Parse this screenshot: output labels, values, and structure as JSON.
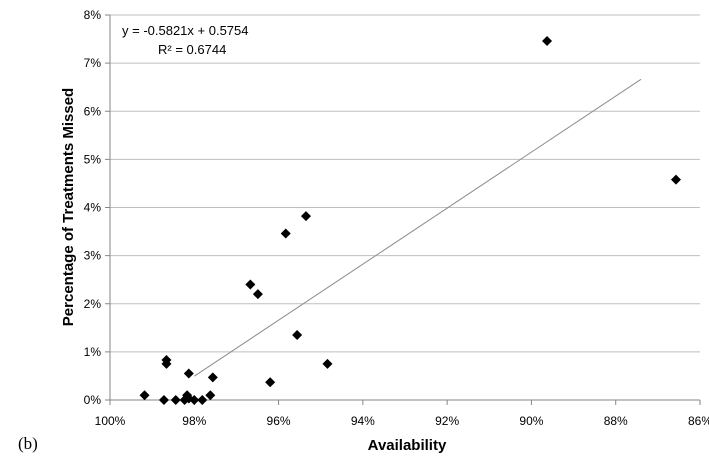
{
  "panel_label": "(b)",
  "chart_data": {
    "type": "scatter",
    "xlabel": "Availability",
    "ylabel": "Percentage of Treatments Missed",
    "x_axis_reversed": true,
    "xlim": [
      1.0,
      0.86
    ],
    "ylim": [
      0,
      0.08
    ],
    "x_ticks": [
      1.0,
      0.98,
      0.96,
      0.94,
      0.92,
      0.9,
      0.88,
      0.86
    ],
    "x_tick_labels": [
      "100%",
      "98%",
      "96%",
      "94%",
      "92%",
      "90%",
      "88%",
      "86%"
    ],
    "y_ticks": [
      0,
      0.01,
      0.02,
      0.03,
      0.04,
      0.05,
      0.06,
      0.07,
      0.08
    ],
    "y_tick_labels": [
      "0%",
      "1%",
      "2%",
      "3%",
      "4%",
      "5%",
      "6%",
      "7%",
      "8%"
    ],
    "grid": "horizontal major gridlines",
    "legend": "none",
    "marker": "diamond",
    "marker_color": "#000000",
    "trendline": {
      "equation": "y = -0.5821x + 0.5754",
      "r_squared": "R² = 0.6744",
      "slope": -0.5821,
      "intercept": 0.5754,
      "x_range": [
        0.98,
        0.874
      ],
      "color": "#8c8c8c"
    },
    "points": [
      {
        "x": 0.9918,
        "y": 0.001
      },
      {
        "x": 0.9866,
        "y": 0.0083
      },
      {
        "x": 0.9866,
        "y": 0.0075
      },
      {
        "x": 0.9872,
        "y": 0.0
      },
      {
        "x": 0.9844,
        "y": 0.0
      },
      {
        "x": 0.9823,
        "y": 0.0
      },
      {
        "x": 0.9817,
        "y": 0.001
      },
      {
        "x": 0.9813,
        "y": 0.0055
      },
      {
        "x": 0.9813,
        "y": 0.0003
      },
      {
        "x": 0.98,
        "y": 0.0
      },
      {
        "x": 0.9781,
        "y": 0.0
      },
      {
        "x": 0.9762,
        "y": 0.001
      },
      {
        "x": 0.9756,
        "y": 0.0047
      },
      {
        "x": 0.9667,
        "y": 0.024
      },
      {
        "x": 0.9649,
        "y": 0.022
      },
      {
        "x": 0.962,
        "y": 0.0037
      },
      {
        "x": 0.9583,
        "y": 0.0346
      },
      {
        "x": 0.9556,
        "y": 0.0135
      },
      {
        "x": 0.9535,
        "y": 0.0382
      },
      {
        "x": 0.9484,
        "y": 0.0075
      },
      {
        "x": 0.8963,
        "y": 0.0746
      },
      {
        "x": 0.8657,
        "y": 0.0458
      }
    ]
  }
}
